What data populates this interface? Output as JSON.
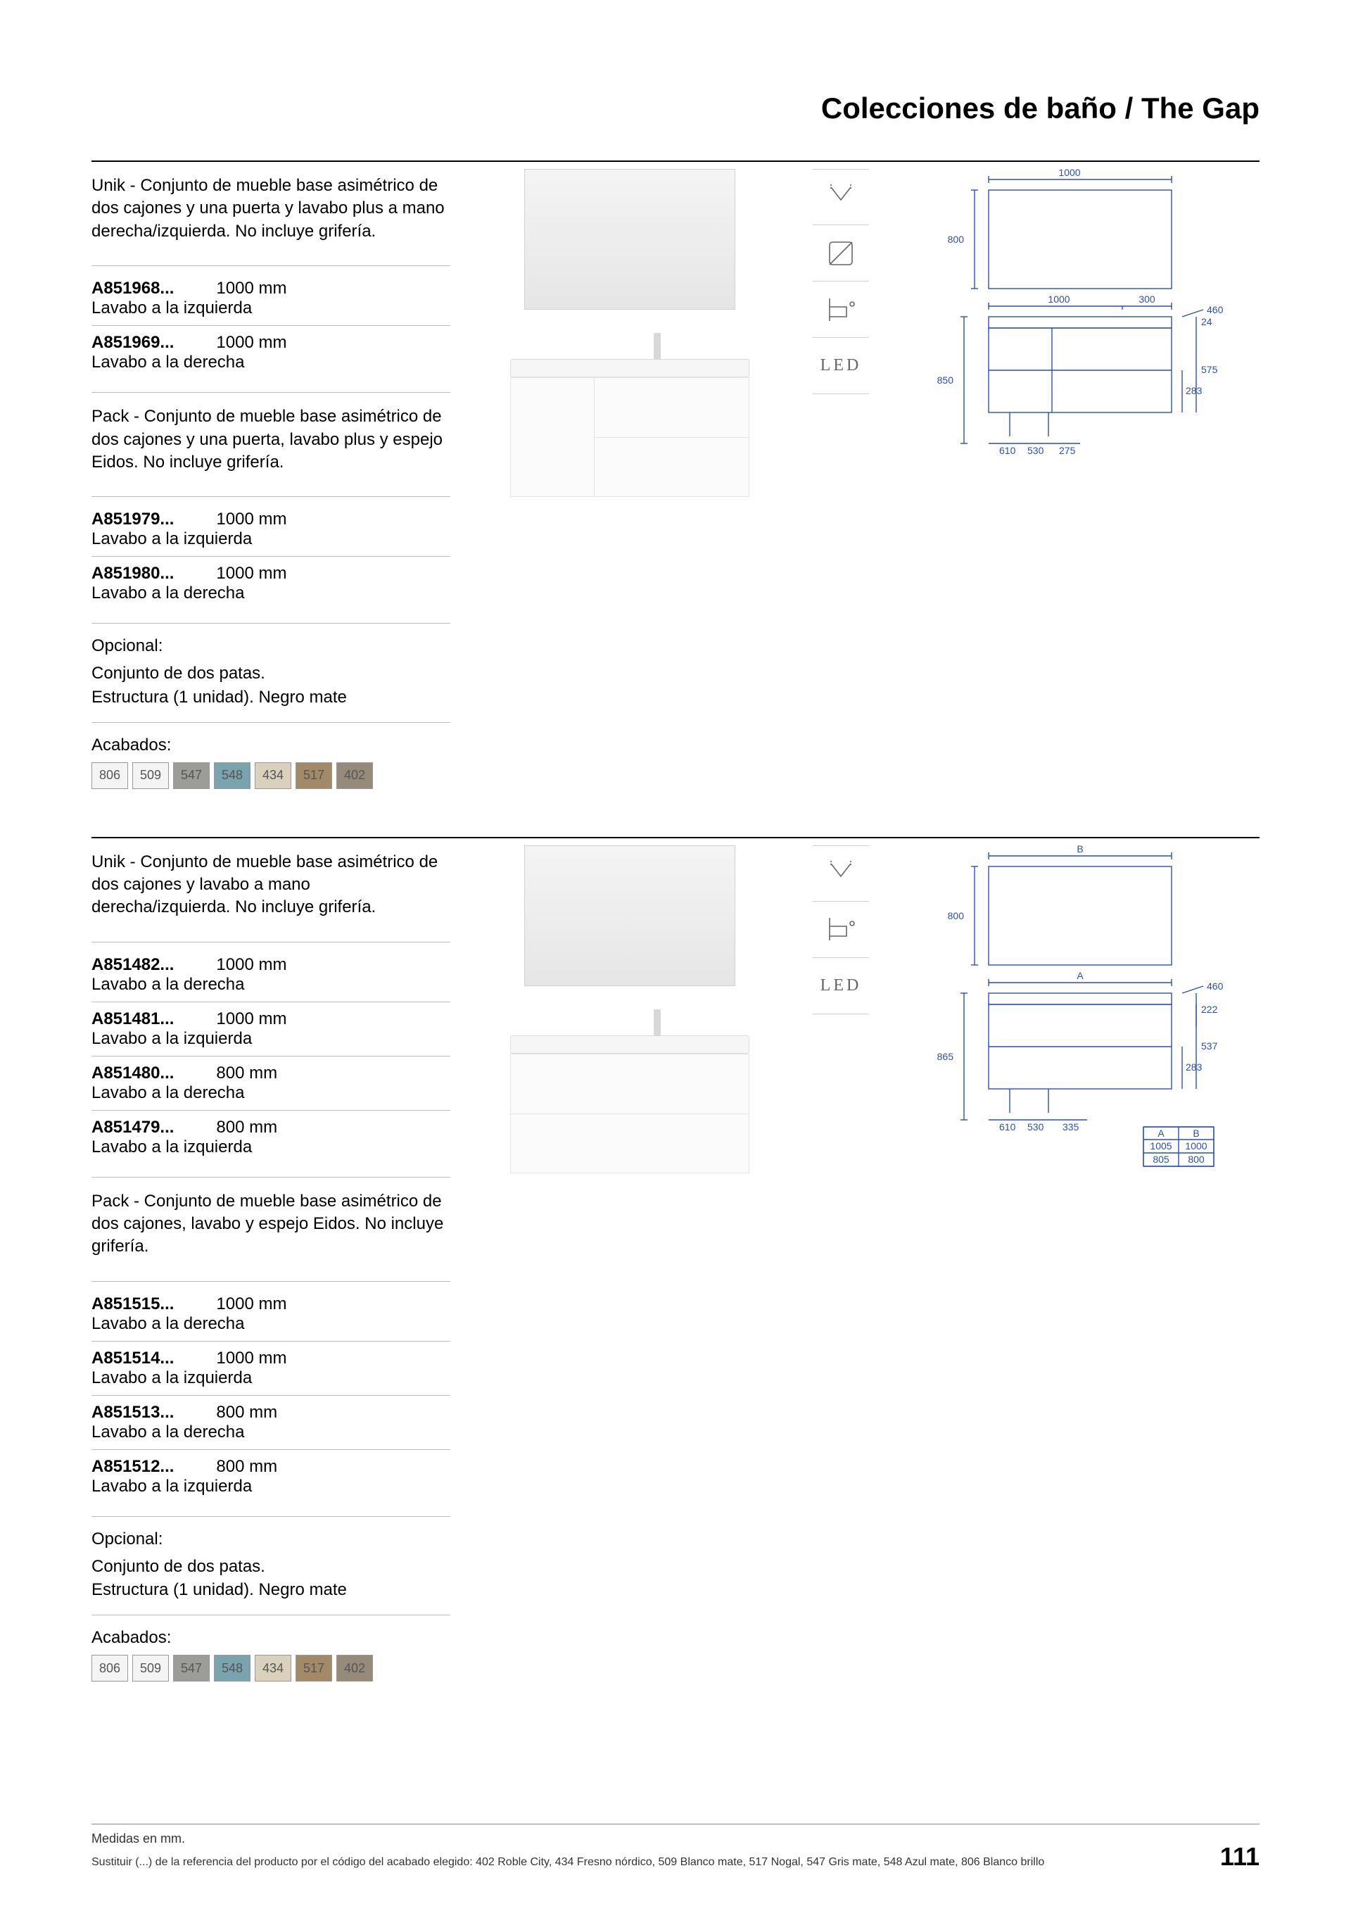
{
  "header": {
    "title": "Colecciones de baño / The Gap"
  },
  "section1": {
    "block_a": {
      "desc": "Unik - Conjunto de mueble base asimétrico de dos cajones y una puerta y lavabo plus a mano derecha/izquierda. No incluye grifería.",
      "items": [
        {
          "code": "A851968...",
          "size": "1000 mm",
          "note": "Lavabo a la izquierda"
        },
        {
          "code": "A851969...",
          "size": "1000 mm",
          "note": "Lavabo a la derecha"
        }
      ]
    },
    "block_b": {
      "desc": "Pack - Conjunto de mueble base asimétrico de dos cajones y una puerta, lavabo plus y espejo Eidos. No incluye grifería.",
      "items": [
        {
          "code": "A851979...",
          "size": "1000 mm",
          "note": "Lavabo a la izquierda"
        },
        {
          "code": "A851980...",
          "size": "1000 mm",
          "note": "Lavabo a la derecha"
        }
      ]
    },
    "optional": {
      "label": "Opcional:",
      "text": "Conjunto de dos patas.\nEstructura (1 unidad). Negro mate"
    },
    "finishes": {
      "label": "Acabados:",
      "swatches": [
        {
          "code": "806",
          "color": "#f4f4f4"
        },
        {
          "code": "509",
          "color": "#f4f4f4"
        },
        {
          "code": "547",
          "color": "#9c9c98"
        },
        {
          "code": "548",
          "color": "#7aa3b0"
        },
        {
          "code": "434",
          "color": "#d9d1bc"
        },
        {
          "code": "517",
          "color": "#a28a68"
        },
        {
          "code": "402",
          "color": "#968a7a"
        }
      ]
    },
    "features": [
      "soft-close",
      "easy-clean",
      "wall-hung",
      "led"
    ],
    "tech": {
      "top_w": "1000",
      "mirror_h": "800",
      "basin_w": "1000",
      "overhang": "300",
      "depth": "460",
      "h_top": "24",
      "h_unit": "575",
      "h_drawer": "283",
      "floor_h": "850",
      "rail": "610",
      "leg1": "530",
      "leg2": "275"
    }
  },
  "section2": {
    "block_a": {
      "desc": "Unik - Conjunto de mueble base asimétrico de dos cajones y lavabo a mano derecha/izquierda. No incluye grifería.",
      "items": [
        {
          "code": "A851482...",
          "size": "1000 mm",
          "note": "Lavabo a la derecha"
        },
        {
          "code": "A851481...",
          "size": "1000 mm",
          "note": "Lavabo a la izquierda"
        },
        {
          "code": "A851480...",
          "size": "800 mm",
          "note": "Lavabo a la derecha"
        },
        {
          "code": "A851479...",
          "size": "800 mm",
          "note": "Lavabo a la izquierda"
        }
      ]
    },
    "block_b": {
      "desc": "Pack - Conjunto de mueble base asimétrico de dos cajones, lavabo y espejo Eidos. No incluye grifería.",
      "items": [
        {
          "code": "A851515...",
          "size": "1000 mm",
          "note": "Lavabo a la derecha"
        },
        {
          "code": "A851514...",
          "size": "1000 mm",
          "note": "Lavabo a la izquierda"
        },
        {
          "code": "A851513...",
          "size": "800 mm",
          "note": "Lavabo a la derecha"
        },
        {
          "code": "A851512...",
          "size": "800 mm",
          "note": "Lavabo a la izquierda"
        }
      ]
    },
    "optional": {
      "label": "Opcional:",
      "text": "Conjunto de dos patas.\nEstructura (1 unidad). Negro mate"
    },
    "finishes": {
      "label": "Acabados:",
      "swatches": [
        {
          "code": "806",
          "color": "#f4f4f4"
        },
        {
          "code": "509",
          "color": "#f4f4f4"
        },
        {
          "code": "547",
          "color": "#9c9c98"
        },
        {
          "code": "548",
          "color": "#7aa3b0"
        },
        {
          "code": "434",
          "color": "#d9d1bc"
        },
        {
          "code": "517",
          "color": "#a28a68"
        },
        {
          "code": "402",
          "color": "#968a7a"
        }
      ]
    },
    "features": [
      "soft-close",
      "wall-hung",
      "led"
    ],
    "tech": {
      "top_label": "B",
      "mirror_h": "800",
      "basin_label": "A",
      "depth": "460",
      "h_top": "222",
      "h_unit": "537",
      "h_drawer": "283",
      "floor_h": "865",
      "rail": "610",
      "leg1": "530",
      "leg2": "335",
      "table": {
        "head_a": "A",
        "head_b": "B",
        "rows": [
          [
            "1005",
            "1000"
          ],
          [
            "805",
            "800"
          ]
        ]
      }
    }
  },
  "footer": {
    "measures": "Medidas en mm.",
    "legend": "Sustituir (...) de la referencia del producto por el código del acabado elegido: 402 Roble City, 434 Fresno nórdico, 509 Blanco mate, 517 Nogal, 547 Gris mate, 548 Azul mate, 806 Blanco brillo",
    "page": "111"
  },
  "led_text": "LED"
}
